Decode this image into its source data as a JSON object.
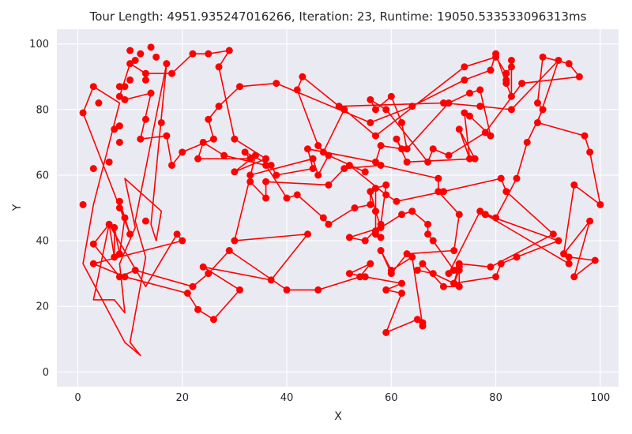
{
  "chart_data": {
    "type": "line",
    "title": "Tour Length: 4951.935247016266, Iteration: 23, Runtime: 19050.533533096313ms",
    "xlabel": "X",
    "ylabel": "Y",
    "xlim": [
      -4,
      103.5
    ],
    "ylim": [
      -4.5,
      104.5
    ],
    "xticks": [
      0,
      20,
      40,
      60,
      80,
      100
    ],
    "yticks": [
      0,
      20,
      40,
      60,
      80,
      100
    ],
    "grid": true,
    "background_color": "#EAEAF2",
    "grid_color": "#FFFFFF",
    "line_color": "#FF0000",
    "marker_color": "#FF0000",
    "x": [
      1,
      8,
      4,
      1,
      9,
      10,
      3,
      11,
      14,
      13,
      17,
      12,
      15,
      16,
      8,
      8,
      7,
      13,
      3,
      6,
      10,
      13,
      19,
      20,
      3,
      9,
      21,
      23,
      26,
      31,
      24,
      37,
      44,
      30,
      34,
      34,
      30,
      36,
      30,
      27,
      29,
      25,
      22,
      18,
      13,
      10,
      8,
      9,
      14,
      12,
      17,
      18,
      20,
      26,
      25,
      27,
      31,
      38,
      56,
      64,
      74,
      79,
      79,
      80,
      82,
      83,
      83,
      83,
      82,
      82,
      80,
      74,
      57,
      51,
      47,
      46,
      42,
      43,
      50,
      70,
      77,
      83,
      92,
      88,
      97,
      98,
      100,
      95,
      93,
      98,
      95,
      99,
      94,
      94,
      78,
      78,
      92,
      84,
      81,
      80,
      72,
      68,
      65,
      66,
      70,
      73,
      73,
      71,
      77,
      80,
      84,
      86,
      89,
      88,
      89,
      94,
      96,
      85,
      78,
      71,
      68,
      67,
      59,
      56,
      57,
      60,
      62,
      63,
      71,
      75,
      77,
      79,
      75,
      74,
      75,
      73,
      76,
      63,
      61,
      62,
      58,
      57,
      44,
      45,
      38,
      37,
      32,
      33,
      23,
      24,
      28,
      36,
      40,
      42,
      47,
      48,
      53,
      56,
      56,
      57,
      58,
      52,
      55,
      58,
      59,
      57,
      57,
      58,
      57,
      62,
      64,
      67,
      67,
      68,
      72,
      73,
      72,
      73,
      79,
      91,
      82,
      81,
      70,
      61,
      59,
      52,
      55,
      48,
      46,
      45,
      33,
      33,
      36,
      36,
      48,
      51,
      58,
      69,
      69,
      73,
      72,
      63,
      60,
      58,
      60,
      64,
      66,
      66,
      65,
      59,
      62,
      59,
      62,
      55,
      52,
      56,
      54,
      46,
      40,
      29,
      25,
      22,
      11,
      8,
      3,
      6,
      7,
      7,
      8,
      9,
      8,
      8,
      10
    ],
    "y": [
      79,
      87,
      82,
      51,
      87,
      98,
      87,
      95,
      99,
      89,
      94,
      97,
      96,
      76,
      70,
      75,
      74,
      77,
      62,
      64,
      89,
      46,
      42,
      40,
      33,
      29,
      24,
      19,
      16,
      25,
      32,
      28,
      42,
      40,
      66,
      66,
      61,
      65,
      71,
      93,
      98,
      97,
      97,
      91,
      91,
      94,
      84,
      83,
      85,
      71,
      72,
      63,
      67,
      71,
      77,
      81,
      87,
      88,
      76,
      81,
      89,
      92,
      92,
      97,
      88,
      84,
      93,
      95,
      89,
      91,
      96,
      93,
      72,
      80,
      67,
      69,
      86,
      90,
      81,
      82,
      81,
      80,
      95,
      76,
      72,
      67,
      51,
      57,
      36,
      46,
      29,
      34,
      35,
      33,
      48,
      48,
      40,
      35,
      33,
      29,
      27,
      30,
      31,
      33,
      26,
      26,
      32,
      30,
      49,
      47,
      59,
      70,
      80,
      82,
      96,
      94,
      90,
      88,
      73,
      66,
      68,
      64,
      80,
      83,
      80,
      84,
      76,
      68,
      82,
      85,
      86,
      72,
      78,
      79,
      65,
      74,
      65,
      64,
      71,
      68,
      69,
      64,
      68,
      62,
      60,
      63,
      67,
      65,
      65,
      70,
      66,
      63,
      53,
      54,
      47,
      45,
      50,
      51,
      55,
      49,
      44,
      41,
      40,
      45,
      57,
      56,
      42,
      41,
      43,
      48,
      49,
      45,
      42,
      40,
      31,
      31,
      27,
      33,
      32,
      42,
      55,
      59,
      55,
      52,
      54,
      63,
      61,
      66,
      60,
      65,
      60,
      58,
      53,
      58,
      57,
      62,
      63,
      59,
      55,
      48,
      37,
      36,
      30,
      37,
      31,
      35,
      14,
      15,
      16,
      12,
      24,
      25,
      27,
      29,
      30,
      33,
      29,
      25,
      25,
      37,
      30,
      26,
      31,
      29,
      39,
      45,
      35,
      44,
      36,
      47,
      50,
      52,
      42
    ],
    "tour_x": [
      1,
      3,
      8,
      3,
      1,
      9,
      12,
      10,
      13,
      11,
      17,
      14,
      15,
      16,
      9,
      11,
      8,
      9,
      7,
      3,
      6,
      13,
      19,
      20,
      3,
      9,
      21,
      23,
      26,
      31,
      24,
      37,
      44,
      30,
      34,
      34,
      30,
      36,
      30,
      27,
      29,
      25,
      22,
      18,
      13,
      10,
      8,
      9,
      14,
      12,
      17,
      18,
      20,
      26,
      25,
      27,
      31,
      38,
      56,
      64,
      74,
      79,
      79,
      80,
      82,
      83,
      83,
      83,
      82,
      82,
      80,
      74,
      57,
      51,
      47,
      46,
      42,
      43,
      50,
      70,
      77,
      83,
      92,
      88,
      97,
      98,
      100,
      95,
      93,
      98,
      95,
      99,
      94,
      94,
      78,
      78,
      92,
      84,
      81,
      80,
      72,
      68,
      65,
      66,
      70,
      73,
      73,
      71,
      77,
      80,
      84,
      86,
      89,
      88,
      89,
      94,
      96,
      85,
      78,
      71,
      68,
      67,
      59,
      56,
      57,
      60,
      62,
      63,
      71,
      75,
      77,
      79,
      75,
      74,
      75,
      73,
      76,
      63,
      61,
      62,
      58,
      57,
      44,
      45,
      38,
      37,
      32,
      33,
      23,
      24,
      28,
      36,
      40,
      42,
      47,
      48,
      53,
      56,
      56,
      57,
      58,
      52,
      55,
      58,
      59,
      57,
      57,
      58,
      57,
      62,
      64,
      67,
      67,
      68,
      72,
      73,
      72,
      73,
      79,
      91,
      82,
      81,
      70,
      61,
      59,
      52,
      55,
      48,
      46,
      45,
      33,
      33,
      36,
      36,
      48,
      51,
      58,
      69,
      69,
      73,
      72,
      63,
      60,
      58,
      60,
      64,
      66,
      66,
      65,
      59,
      62,
      59,
      62,
      55,
      52,
      56,
      54,
      46,
      40,
      29,
      25,
      22,
      11,
      8,
      3,
      6,
      7,
      7,
      8,
      9,
      8,
      8,
      10,
      1
    ],
    "tour_y": [
      79,
      87,
      82,
      51,
      33,
      9,
      5,
      9,
      35,
      46,
      94,
      45,
      40,
      49,
      59,
      44,
      33,
      18,
      22,
      22,
      45,
      26,
      42,
      40,
      33,
      29,
      24,
      19,
      16,
      25,
      32,
      28,
      42,
      40,
      66,
      66,
      61,
      65,
      71,
      93,
      98,
      97,
      97,
      91,
      91,
      94,
      84,
      83,
      85,
      71,
      72,
      63,
      67,
      71,
      77,
      81,
      87,
      88,
      76,
      81,
      89,
      92,
      92,
      97,
      88,
      84,
      93,
      95,
      89,
      91,
      96,
      93,
      72,
      80,
      67,
      69,
      86,
      90,
      81,
      82,
      81,
      80,
      95,
      76,
      72,
      67,
      51,
      57,
      36,
      46,
      29,
      34,
      35,
      33,
      48,
      48,
      40,
      35,
      33,
      29,
      27,
      30,
      31,
      33,
      26,
      26,
      32,
      30,
      49,
      47,
      59,
      70,
      80,
      82,
      96,
      94,
      90,
      88,
      73,
      66,
      68,
      64,
      80,
      83,
      80,
      84,
      76,
      68,
      82,
      85,
      86,
      72,
      78,
      79,
      65,
      74,
      65,
      64,
      71,
      68,
      69,
      64,
      68,
      62,
      60,
      63,
      67,
      65,
      65,
      70,
      66,
      63,
      53,
      54,
      47,
      45,
      50,
      51,
      55,
      49,
      44,
      41,
      40,
      45,
      57,
      56,
      42,
      41,
      43,
      48,
      49,
      45,
      42,
      40,
      31,
      31,
      27,
      33,
      32,
      42,
      55,
      59,
      55,
      52,
      54,
      63,
      61,
      66,
      60,
      65,
      60,
      58,
      53,
      58,
      57,
      62,
      63,
      59,
      55,
      48,
      37,
      36,
      30,
      37,
      31,
      35,
      14,
      15,
      16,
      12,
      24,
      25,
      27,
      29,
      30,
      33,
      29,
      25,
      25,
      37,
      30,
      26,
      31,
      29,
      39,
      45,
      35,
      44,
      36,
      47,
      50,
      52,
      42,
      79
    ]
  }
}
